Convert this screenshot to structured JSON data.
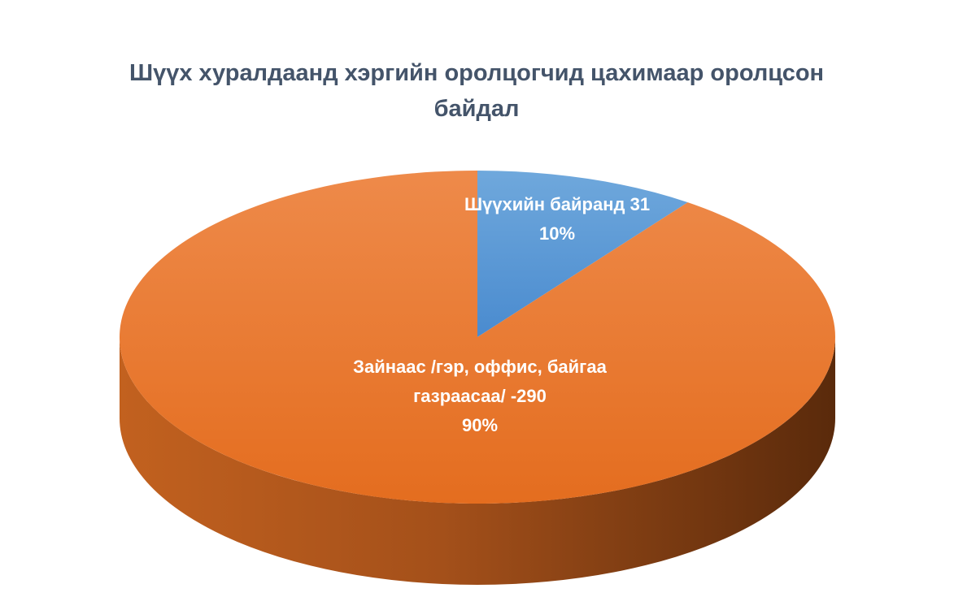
{
  "chart_data": {
    "type": "pie",
    "title": "Шүүх хуралдаанд хэргийн оролцогчид цахимаар оролцсон байдал",
    "categories": [
      "Шүүхийн байранд 31",
      "Зайнаас /гэр, оффис, байгаа газраасаа/ -290"
    ],
    "values": [
      10,
      90
    ],
    "value_labels": [
      "10%",
      "90%"
    ],
    "colors": [
      "#5b9bd5",
      "#ed7d31"
    ]
  }
}
